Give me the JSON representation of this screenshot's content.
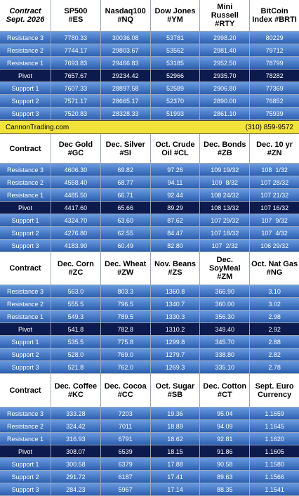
{
  "tables": [
    {
      "header": [
        "Contract\nSept. 2026",
        "SP500\n#ES",
        "Nasdaq100\n#NQ",
        "Dow Jones\n#YM",
        "Mini\nRussell\n#RTY",
        "BitCoin\nIndex #BRTI"
      ],
      "rows": [
        {
          "label": "Resistance 3",
          "cells": [
            "7780.33",
            "30036.08",
            "53781",
            "2998.20",
            "80229"
          ]
        },
        {
          "label": "Resistance 2",
          "cells": [
            "7744.17",
            "29803.67",
            "53562",
            "2981.40",
            "79712"
          ]
        },
        {
          "label": "Resistance 1",
          "cells": [
            "7693.83",
            "29466.83",
            "53185",
            "2952.50",
            "78799"
          ]
        },
        {
          "label": "Pivot",
          "cells": [
            "7657.67",
            "29234.42",
            "52966",
            "2935.70",
            "78282"
          ]
        },
        {
          "label": "Support 1",
          "cells": [
            "7607.33",
            "28897.58",
            "52589",
            "2906.80",
            "77369"
          ]
        },
        {
          "label": "Support 2",
          "cells": [
            "7571.17",
            "28665.17",
            "52370",
            "2890.00",
            "76852"
          ]
        },
        {
          "label": "Support 3",
          "cells": [
            "7520.83",
            "28328.33",
            "51993",
            "2861.10",
            "75939"
          ]
        }
      ]
    },
    {
      "header": [
        "Contract",
        "Dec Gold\n#GC",
        "Dec. Silver\n#SI",
        "Oct. Crude\nOil #CL",
        "Dec. Bonds\n#ZB",
        "Dec. 10 yr\n#ZN"
      ],
      "rows": [
        {
          "label": "Resistance 3",
          "cells": [
            "4606.30",
            "69.82",
            "97.26",
            "109 19/32",
            "108  1/32"
          ]
        },
        {
          "label": "Resistance 2",
          "cells": [
            "4558.40",
            "68.77",
            "94.11",
            "109  8/32",
            "107 28/32"
          ]
        },
        {
          "label": "Resistance 1",
          "cells": [
            "4485.50",
            "66.71",
            "92.44",
            "108 24/32",
            "107 21/32"
          ]
        },
        {
          "label": "Pivot",
          "cells": [
            "4417.60",
            "65.66",
            "89.29",
            "108 13/32",
            "107 16/32"
          ]
        },
        {
          "label": "Support 1",
          "cells": [
            "4324.70",
            "63.60",
            "87.62",
            "107 29/32",
            "107  9/32"
          ]
        },
        {
          "label": "Support 2",
          "cells": [
            "4276.80",
            "62.55",
            "84.47",
            "107 18/32",
            "107  4/32"
          ]
        },
        {
          "label": "Support 3",
          "cells": [
            "4183.90",
            "60.49",
            "82.80",
            "107  2/32",
            "106 29/32"
          ]
        }
      ]
    },
    {
      "header": [
        "Contract",
        "Dec. Corn\n#ZC",
        "Dec.  Wheat\n#ZW",
        "Nov. Beans\n#ZS",
        "Dec.\nSoyMeal\n#ZM",
        "Oct. Nat Gas\n#NG"
      ],
      "rows": [
        {
          "label": "Resistance 3",
          "cells": [
            "563.0",
            "803.3",
            "1360.8",
            "366.90",
            "3.10"
          ]
        },
        {
          "label": "Resistance 2",
          "cells": [
            "555.5",
            "796.5",
            "1340.7",
            "360.00",
            "3.02"
          ]
        },
        {
          "label": "Resistance 1",
          "cells": [
            "549.3",
            "789.5",
            "1330.3",
            "356.30",
            "2.98"
          ]
        },
        {
          "label": "Pivot",
          "cells": [
            "541.8",
            "782.8",
            "1310.2",
            "349.40",
            "2.92"
          ]
        },
        {
          "label": "Support 1",
          "cells": [
            "535.5",
            "775.8",
            "1299.8",
            "345.70",
            "2.88"
          ]
        },
        {
          "label": "Support 2",
          "cells": [
            "528.0",
            "769.0",
            "1279.7",
            "338.80",
            "2.82"
          ]
        },
        {
          "label": "Support 3",
          "cells": [
            "521.8",
            "762.0",
            "1269.3",
            "335.10",
            "2.78"
          ]
        }
      ]
    },
    {
      "header": [
        "Contract",
        "Dec. Coffee\n#KC",
        "Dec. Cocoa\n#CC",
        "Oct. Sugar\n#SB",
        "Dec. Cotton\n#CT",
        "Sept. Euro\nCurrency"
      ],
      "rows": [
        {
          "label": "Resistance 3",
          "cells": [
            "333.28",
            "7203",
            "19.36",
            "95.04",
            "1.1659"
          ]
        },
        {
          "label": "Resistance 2",
          "cells": [
            "324.42",
            "7011",
            "18.89",
            "94.09",
            "1.1645"
          ]
        },
        {
          "label": "Resistance 1",
          "cells": [
            "316.93",
            "6791",
            "18.62",
            "92.81",
            "1.1620"
          ]
        },
        {
          "label": "Pivot",
          "cells": [
            "308.07",
            "6539",
            "18.15",
            "91.86",
            "1.1605"
          ]
        },
        {
          "label": "Support 1",
          "cells": [
            "300.58",
            "6379",
            "17.88",
            "90.58",
            "1.1580"
          ]
        },
        {
          "label": "Support 2",
          "cells": [
            "291.72",
            "6187",
            "17.41",
            "89.63",
            "1.1566"
          ]
        },
        {
          "label": "Support 3",
          "cells": [
            "284.23",
            "5967",
            "17.14",
            "88.35",
            "1.1541"
          ]
        }
      ]
    }
  ],
  "banner": {
    "site": "CannonTrading.com",
    "phone": "(310) 859-9572"
  }
}
